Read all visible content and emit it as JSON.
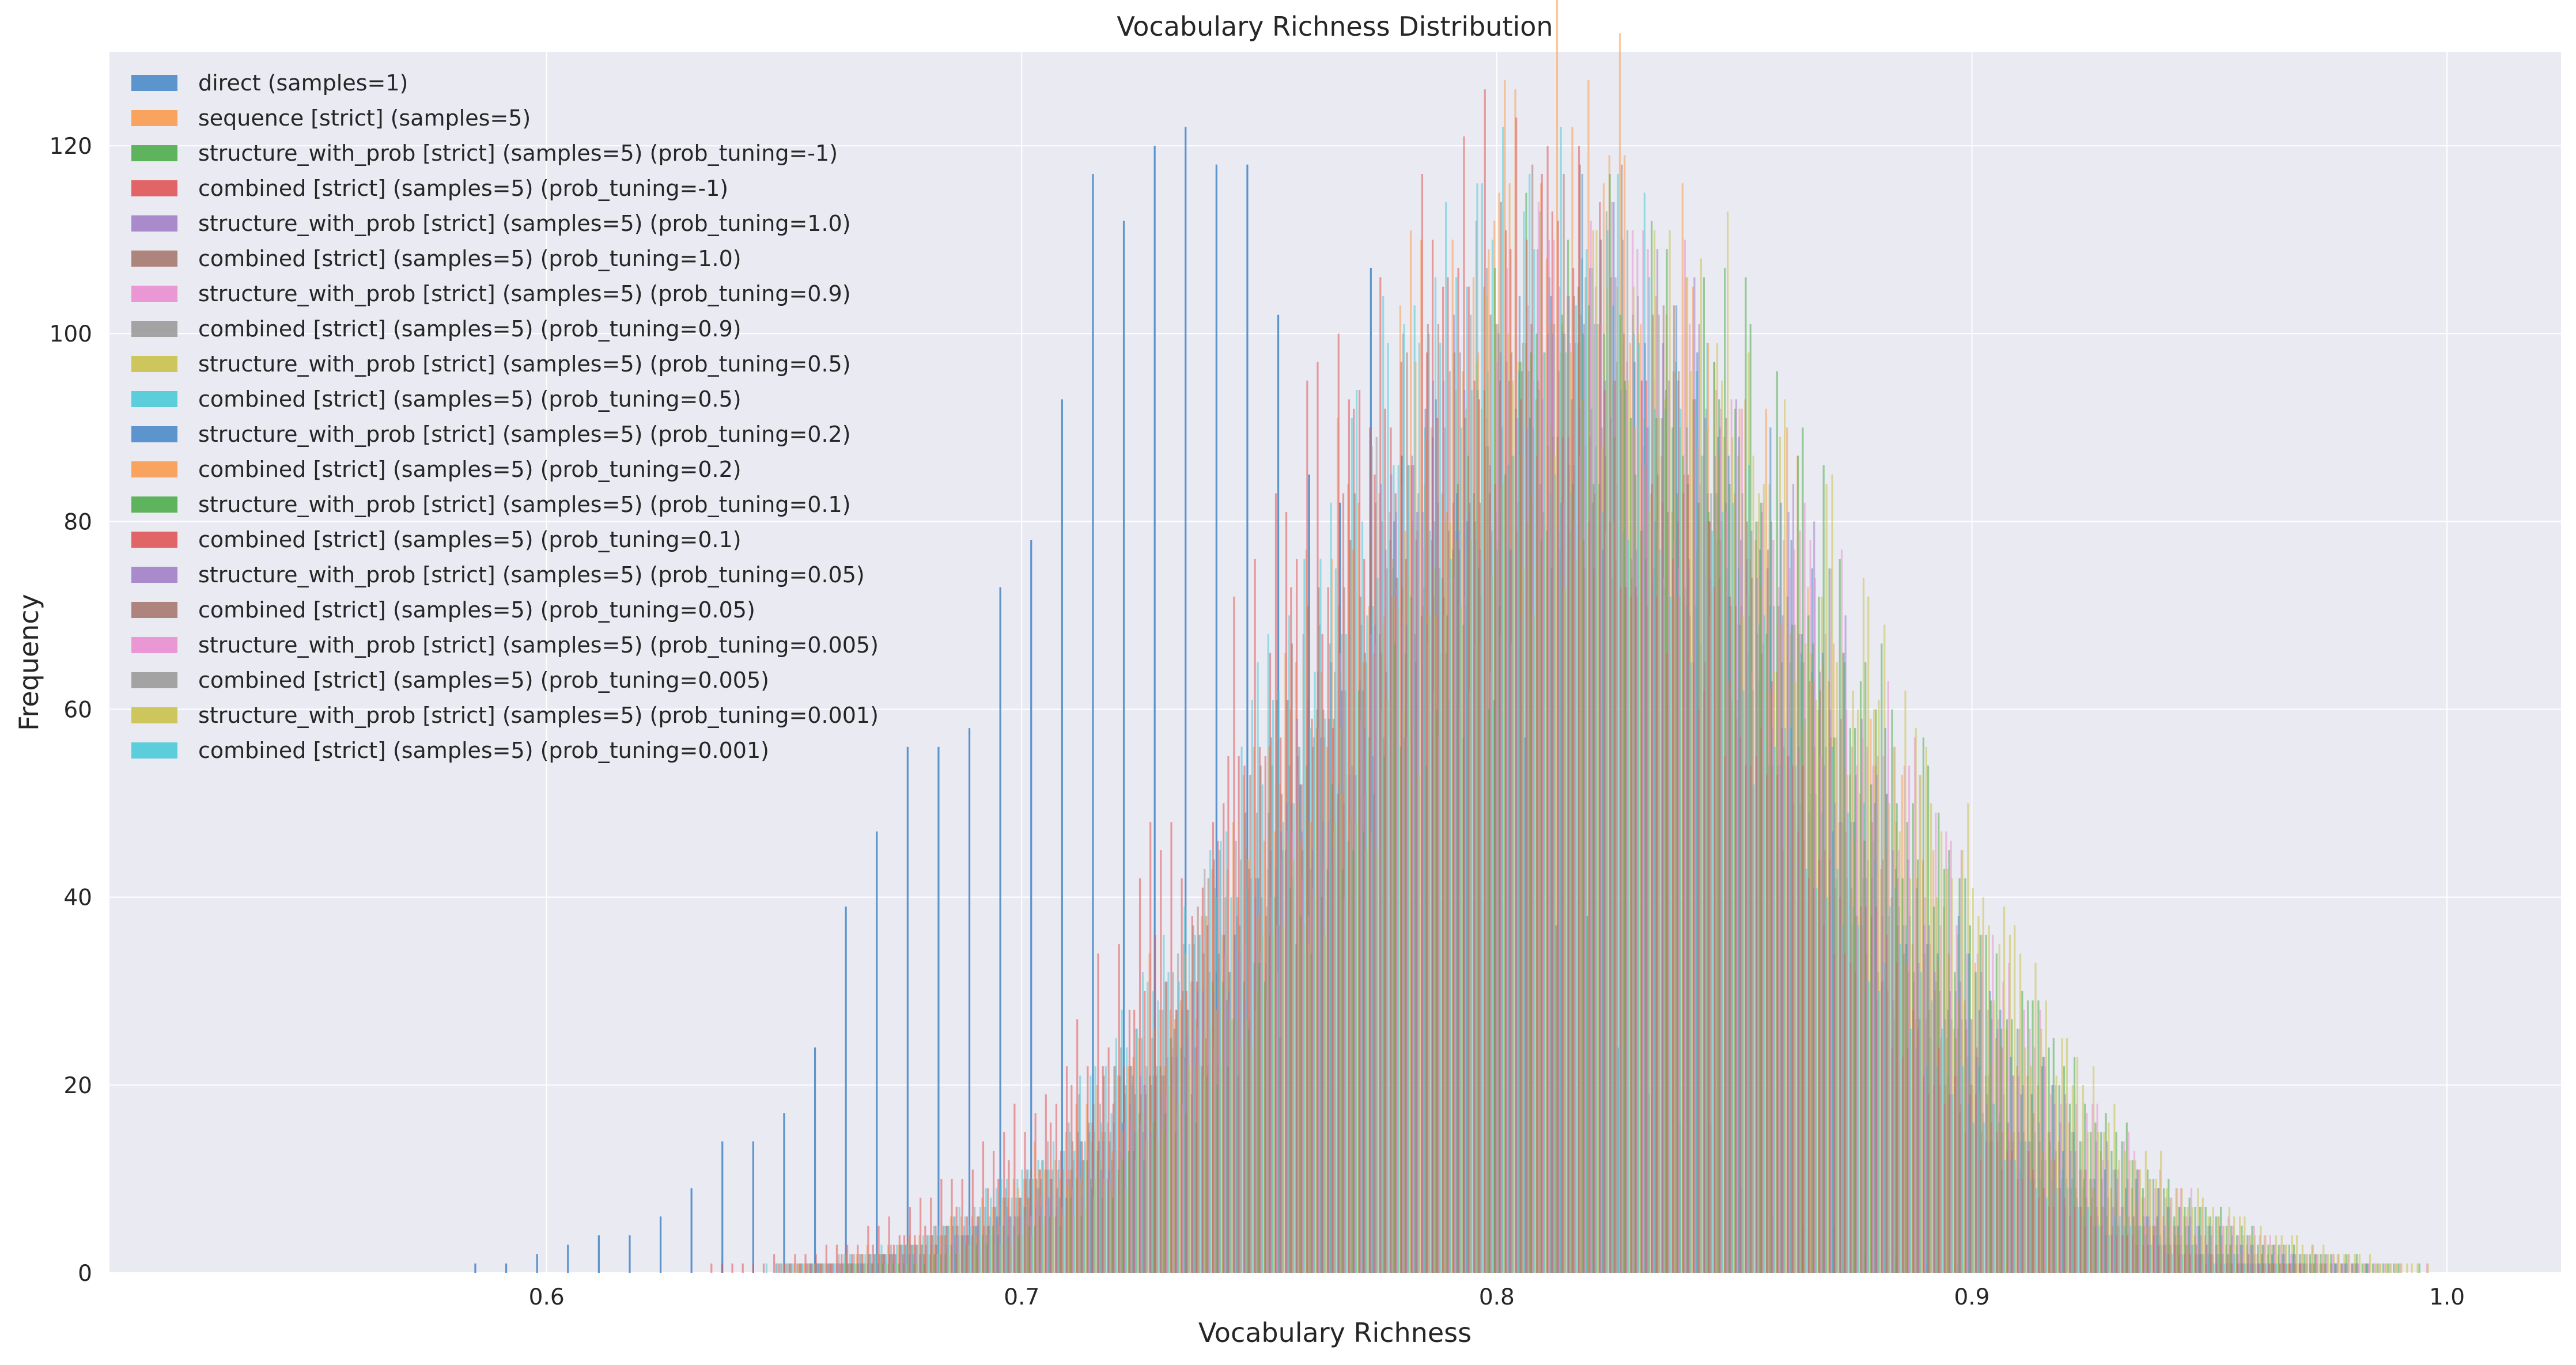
{
  "chart_data": {
    "type": "bar",
    "title": "Vocabulary Richness Distribution",
    "xlabel": "Vocabulary Richness",
    "ylabel": "Frequency",
    "xlim": [
      0.508,
      1.024
    ],
    "ylim": [
      0,
      130
    ],
    "xticks": [
      "0.6",
      "0.7",
      "0.8",
      "0.9",
      "1.0"
    ],
    "yticks": [
      "0",
      "20",
      "40",
      "60",
      "80",
      "100",
      "120"
    ],
    "grid": true,
    "legend_position": "top-left",
    "series": [
      {
        "name": "direct (samples=1)",
        "color": "#4c8cc9",
        "alpha": 0.9,
        "mean": 0.742,
        "std": 0.05,
        "peak": 124,
        "step": 0.0065,
        "offset": 0.0,
        "seed": 1
      },
      {
        "name": "sequence [strict] (samples=5)",
        "color": "#f99c4f",
        "alpha": 0.55,
        "mean": 0.814,
        "std": 0.052,
        "peak": 122,
        "step": 0.0022,
        "offset": 0.0001,
        "seed": 2
      },
      {
        "name": "structure_with_prob [strict] (samples=5) (prob_tuning=-1)",
        "color": "#4eae4b",
        "alpha": 0.55,
        "mean": 0.825,
        "std": 0.052,
        "peak": 110,
        "step": 0.0022,
        "offset": 0.0002,
        "seed": 3
      },
      {
        "name": "combined [strict] (samples=5) (prob_tuning=-1)",
        "color": "#e05557",
        "alpha": 0.55,
        "mean": 0.8,
        "std": 0.052,
        "peak": 112,
        "step": 0.0022,
        "offset": 0.0003,
        "seed": 4
      },
      {
        "name": "structure_with_prob [strict] (samples=5) (prob_tuning=1.0)",
        "color": "#a281c9",
        "alpha": 0.55,
        "mean": 0.818,
        "std": 0.05,
        "peak": 106,
        "step": 0.0022,
        "offset": 0.0004,
        "seed": 5
      },
      {
        "name": "combined [strict] (samples=5) (prob_tuning=1.0)",
        "color": "#a67a70",
        "alpha": 0.55,
        "mean": 0.812,
        "std": 0.05,
        "peak": 108,
        "step": 0.0022,
        "offset": 0.0005,
        "seed": 6
      },
      {
        "name": "structure_with_prob [strict] (samples=5) (prob_tuning=0.9)",
        "color": "#ea8fd0",
        "alpha": 0.55,
        "mean": 0.825,
        "std": 0.053,
        "peak": 105,
        "step": 0.0022,
        "offset": 0.0006,
        "seed": 7
      },
      {
        "name": "combined [strict] (samples=5) (prob_tuning=0.9)",
        "color": "#9b9b9b",
        "alpha": 0.55,
        "mean": 0.81,
        "std": 0.051,
        "peak": 104,
        "step": 0.0022,
        "offset": 0.0007,
        "seed": 8
      },
      {
        "name": "structure_with_prob [strict] (samples=5) (prob_tuning=0.5)",
        "color": "#c9c24d",
        "alpha": 0.55,
        "mean": 0.828,
        "std": 0.053,
        "peak": 108,
        "step": 0.0022,
        "offset": 0.0008,
        "seed": 9
      },
      {
        "name": "combined [strict] (samples=5) (prob_tuning=0.5)",
        "color": "#4ccad7",
        "alpha": 0.55,
        "mean": 0.808,
        "std": 0.05,
        "peak": 114,
        "step": 0.0022,
        "offset": 0.0009,
        "seed": 10
      },
      {
        "name": "structure_with_prob [strict] (samples=5) (prob_tuning=0.2)",
        "color": "#4c8cc9",
        "alpha": 0.55,
        "mean": 0.82,
        "std": 0.052,
        "peak": 104,
        "step": 0.0022,
        "offset": 0.001,
        "seed": 11
      },
      {
        "name": "combined [strict] (samples=5) (prob_tuning=0.2)",
        "color": "#f99c4f",
        "alpha": 0.55,
        "mean": 0.815,
        "std": 0.051,
        "peak": 108,
        "step": 0.0022,
        "offset": 0.0011,
        "seed": 12
      },
      {
        "name": "structure_with_prob [strict] (samples=5) (prob_tuning=0.1)",
        "color": "#4eae4b",
        "alpha": 0.55,
        "mean": 0.83,
        "std": 0.052,
        "peak": 100,
        "step": 0.0022,
        "offset": 0.0012,
        "seed": 13
      },
      {
        "name": "combined [strict] (samples=5) (prob_tuning=0.1)",
        "color": "#e05557",
        "alpha": 0.55,
        "mean": 0.805,
        "std": 0.05,
        "peak": 106,
        "step": 0.0022,
        "offset": 0.0013,
        "seed": 14
      },
      {
        "name": "structure_with_prob [strict] (samples=5) (prob_tuning=0.05)",
        "color": "#a281c9",
        "alpha": 0.55,
        "mean": 0.822,
        "std": 0.052,
        "peak": 102,
        "step": 0.0022,
        "offset": 0.0014,
        "seed": 15
      },
      {
        "name": "combined [strict] (samples=5) (prob_tuning=0.05)",
        "color": "#a67a70",
        "alpha": 0.55,
        "mean": 0.81,
        "std": 0.05,
        "peak": 104,
        "step": 0.0022,
        "offset": 0.0015,
        "seed": 16
      },
      {
        "name": "structure_with_prob [strict] (samples=5) (prob_tuning=0.005)",
        "color": "#ea8fd0",
        "alpha": 0.55,
        "mean": 0.826,
        "std": 0.053,
        "peak": 100,
        "step": 0.0022,
        "offset": 0.0016,
        "seed": 17
      },
      {
        "name": "combined [strict] (samples=5) (prob_tuning=0.005)",
        "color": "#9b9b9b",
        "alpha": 0.55,
        "mean": 0.812,
        "std": 0.051,
        "peak": 102,
        "step": 0.0022,
        "offset": 0.0017,
        "seed": 18
      },
      {
        "name": "structure_with_prob [strict] (samples=5) (prob_tuning=0.001)",
        "color": "#c9c24d",
        "alpha": 0.55,
        "mean": 0.83,
        "std": 0.053,
        "peak": 100,
        "step": 0.0022,
        "offset": 0.0018,
        "seed": 19
      },
      {
        "name": "combined [strict] (samples=5) (prob_tuning=0.001)",
        "color": "#4ccad7",
        "alpha": 0.55,
        "mean": 0.808,
        "std": 0.05,
        "peak": 110,
        "step": 0.0022,
        "offset": 0.0019,
        "seed": 20
      }
    ]
  }
}
